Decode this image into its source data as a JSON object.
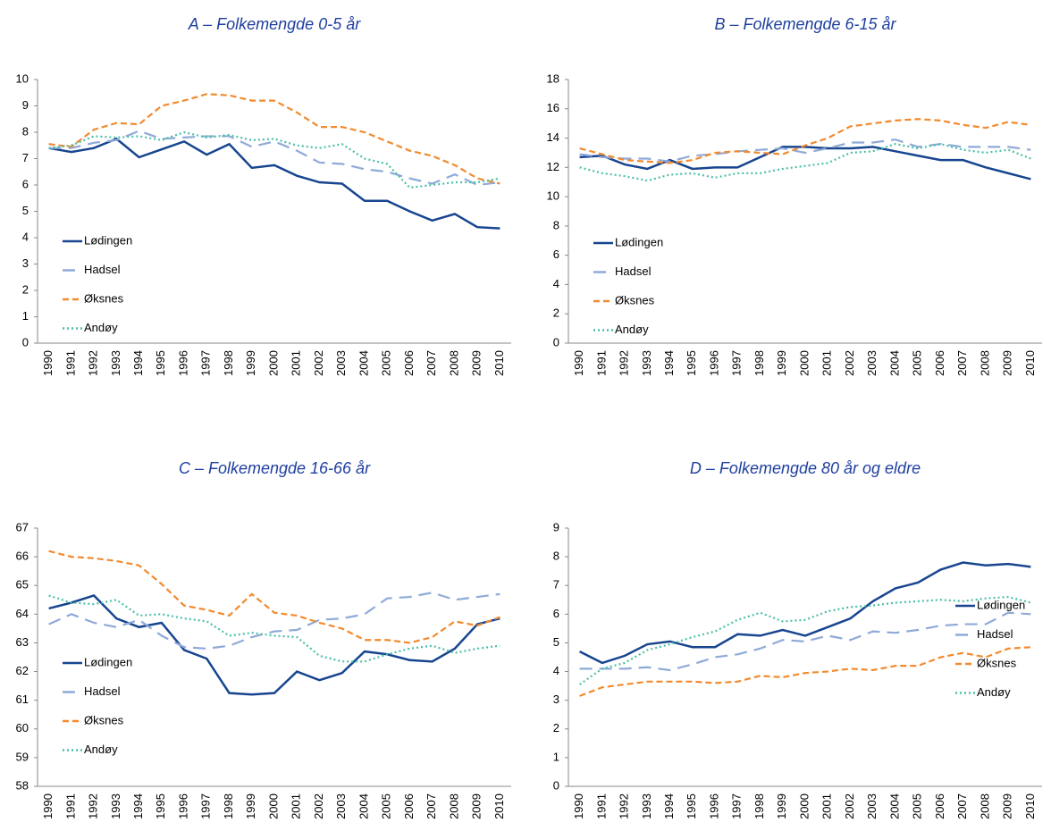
{
  "chart_data": [
    {
      "type": "line",
      "title": "A – Folkemengde 0-5 år",
      "categories": [
        "1990",
        "1991",
        "1992",
        "1993",
        "1994",
        "1995",
        "1996",
        "1997",
        "1998",
        "1999",
        "2000",
        "2001",
        "2002",
        "2003",
        "2004",
        "2005",
        "2006",
        "2007",
        "2008",
        "2009",
        "2010"
      ],
      "ylim": [
        0,
        10
      ],
      "yticks": [
        0,
        1,
        2,
        3,
        4,
        5,
        6,
        7,
        8,
        9,
        10
      ],
      "legend": "lower left",
      "series": [
        {
          "name": "Lødingen",
          "color": "#17458f",
          "dash": "solid",
          "values": [
            7.4,
            7.25,
            7.4,
            7.75,
            7.05,
            7.35,
            7.65,
            7.15,
            7.55,
            6.65,
            6.75,
            6.35,
            6.1,
            6.05,
            5.4,
            5.4,
            5.0,
            4.65,
            4.9,
            4.4,
            4.35
          ]
        },
        {
          "name": "Hadsel",
          "color": "#8faad8",
          "dash": "long-dash",
          "values": [
            7.4,
            7.4,
            7.6,
            7.7,
            8.05,
            7.75,
            7.8,
            7.85,
            7.85,
            7.45,
            7.65,
            7.3,
            6.85,
            6.8,
            6.6,
            6.5,
            6.25,
            6.05,
            6.4,
            6.0,
            6.1
          ]
        },
        {
          "name": "Øksnes",
          "color": "#f28a2e",
          "dash": "dash",
          "values": [
            7.55,
            7.45,
            8.1,
            8.35,
            8.3,
            9.0,
            9.2,
            9.45,
            9.4,
            9.2,
            9.2,
            8.75,
            8.2,
            8.2,
            8.0,
            7.65,
            7.3,
            7.1,
            6.75,
            6.25,
            6.05
          ]
        },
        {
          "name": "Andøy",
          "color": "#4bbfa8",
          "dash": "dot",
          "values": [
            7.4,
            7.5,
            7.85,
            7.8,
            7.85,
            7.7,
            8.0,
            7.8,
            7.9,
            7.7,
            7.75,
            7.5,
            7.4,
            7.55,
            7.0,
            6.8,
            5.9,
            6.0,
            6.1,
            6.1,
            6.25
          ]
        }
      ]
    },
    {
      "type": "line",
      "title": "B – Folkemengde 6-15 år",
      "categories": [
        "1990",
        "1991",
        "1992",
        "1993",
        "1994",
        "1995",
        "1996",
        "1997",
        "1998",
        "1999",
        "2000",
        "2001",
        "2002",
        "2003",
        "2004",
        "2005",
        "2006",
        "2007",
        "2008",
        "2009",
        "2010"
      ],
      "ylim": [
        0,
        18
      ],
      "yticks": [
        0,
        2,
        4,
        6,
        8,
        10,
        12,
        14,
        16,
        18
      ],
      "legend": "lower left",
      "series": [
        {
          "name": "Lødingen",
          "color": "#17458f",
          "dash": "solid",
          "values": [
            12.7,
            12.8,
            12.2,
            11.9,
            12.5,
            11.9,
            12.0,
            12.0,
            12.7,
            13.4,
            13.4,
            13.3,
            13.3,
            13.4,
            13.1,
            12.8,
            12.5,
            12.5,
            12.0,
            11.6,
            11.2
          ]
        },
        {
          "name": "Hadsel",
          "color": "#8faad8",
          "dash": "long-dash",
          "values": [
            12.9,
            12.7,
            12.6,
            12.6,
            12.4,
            12.8,
            12.9,
            13.1,
            13.2,
            13.3,
            13.0,
            13.3,
            13.7,
            13.7,
            13.9,
            13.4,
            13.6,
            13.4,
            13.4,
            13.4,
            13.2
          ]
        },
        {
          "name": "Øksnes",
          "color": "#f28a2e",
          "dash": "dash",
          "values": [
            13.3,
            12.9,
            12.5,
            12.4,
            12.3,
            12.5,
            13.0,
            13.1,
            13.0,
            12.9,
            13.5,
            14.0,
            14.8,
            15.0,
            15.2,
            15.3,
            15.2,
            14.9,
            14.7,
            15.1,
            14.9
          ]
        },
        {
          "name": "Andøy",
          "color": "#4bbfa8",
          "dash": "dot",
          "values": [
            12.0,
            11.6,
            11.4,
            11.1,
            11.5,
            11.6,
            11.3,
            11.6,
            11.6,
            11.9,
            12.1,
            12.3,
            13.0,
            13.1,
            13.6,
            13.3,
            13.6,
            13.2,
            13.0,
            13.2,
            12.6
          ]
        }
      ]
    },
    {
      "type": "line",
      "title": "C – Folkemengde 16-66 år",
      "categories": [
        "1990",
        "1991",
        "1992",
        "1993",
        "1994",
        "1995",
        "1996",
        "1997",
        "1998",
        "1999",
        "2000",
        "2001",
        "2002",
        "2003",
        "2004",
        "2005",
        "2006",
        "2007",
        "2008",
        "2009",
        "2010"
      ],
      "ylim": [
        58,
        67
      ],
      "yticks": [
        58,
        59,
        60,
        61,
        62,
        63,
        64,
        65,
        66,
        67
      ],
      "legend": "lower left",
      "series": [
        {
          "name": "Lødingen",
          "color": "#17458f",
          "dash": "solid",
          "values": [
            64.2,
            64.4,
            64.65,
            63.85,
            63.55,
            63.7,
            62.75,
            62.45,
            61.25,
            61.2,
            61.25,
            62.0,
            61.7,
            61.95,
            62.7,
            62.6,
            62.4,
            62.35,
            62.8,
            63.65,
            63.85
          ]
        },
        {
          "name": "Hadsel",
          "color": "#8faad8",
          "dash": "long-dash",
          "values": [
            63.65,
            64.0,
            63.7,
            63.55,
            63.8,
            63.25,
            62.85,
            62.8,
            62.9,
            63.2,
            63.4,
            63.45,
            63.8,
            63.85,
            64.0,
            64.55,
            64.6,
            64.75,
            64.5,
            64.6,
            64.7
          ]
        },
        {
          "name": "Øksnes",
          "color": "#f28a2e",
          "dash": "dash",
          "values": [
            66.2,
            66.0,
            65.95,
            65.85,
            65.7,
            65.05,
            64.3,
            64.15,
            63.95,
            64.7,
            64.05,
            63.95,
            63.7,
            63.5,
            63.1,
            63.1,
            63.0,
            63.2,
            63.75,
            63.6,
            63.9
          ]
        },
        {
          "name": "Andøy",
          "color": "#4bbfa8",
          "dash": "dot",
          "values": [
            64.65,
            64.4,
            64.35,
            64.5,
            63.95,
            64.0,
            63.85,
            63.75,
            63.25,
            63.35,
            63.25,
            63.2,
            62.55,
            62.35,
            62.35,
            62.6,
            62.8,
            62.9,
            62.65,
            62.8,
            62.9
          ]
        }
      ]
    },
    {
      "type": "line",
      "title": "D – Folkemengde 80 år og eldre",
      "categories": [
        "1990",
        "1991",
        "1992",
        "1993",
        "1994",
        "1995",
        "1996",
        "1997",
        "1998",
        "1999",
        "2000",
        "2001",
        "2002",
        "2003",
        "2004",
        "2005",
        "2006",
        "2007",
        "2008",
        "2009",
        "2010"
      ],
      "ylim": [
        0,
        9
      ],
      "yticks": [
        0,
        1,
        2,
        3,
        4,
        5,
        6,
        7,
        8,
        9
      ],
      "legend": "lower right",
      "series": [
        {
          "name": "Lødingen",
          "color": "#17458f",
          "dash": "solid",
          "values": [
            4.7,
            4.3,
            4.55,
            4.95,
            5.05,
            4.85,
            4.85,
            5.3,
            5.25,
            5.45,
            5.25,
            5.55,
            5.85,
            6.45,
            6.9,
            7.1,
            7.55,
            7.8,
            7.7,
            7.75,
            7.65
          ]
        },
        {
          "name": "Hadsel",
          "color": "#8faad8",
          "dash": "long-dash",
          "values": [
            4.1,
            4.1,
            4.1,
            4.15,
            4.05,
            4.25,
            4.5,
            4.6,
            4.8,
            5.1,
            5.05,
            5.25,
            5.1,
            5.4,
            5.35,
            5.45,
            5.6,
            5.65,
            5.65,
            6.05,
            6.0
          ]
        },
        {
          "name": "Øksnes",
          "color": "#f28a2e",
          "dash": "dash",
          "values": [
            3.15,
            3.45,
            3.55,
            3.65,
            3.65,
            3.65,
            3.6,
            3.65,
            3.85,
            3.8,
            3.95,
            4.0,
            4.1,
            4.05,
            4.2,
            4.2,
            4.5,
            4.65,
            4.5,
            4.8,
            4.85
          ]
        },
        {
          "name": "Andøy",
          "color": "#4bbfa8",
          "dash": "dot",
          "values": [
            3.55,
            4.1,
            4.3,
            4.75,
            4.95,
            5.2,
            5.4,
            5.8,
            6.05,
            5.75,
            5.8,
            6.1,
            6.25,
            6.3,
            6.4,
            6.45,
            6.5,
            6.45,
            6.55,
            6.6,
            6.4
          ]
        }
      ]
    }
  ]
}
